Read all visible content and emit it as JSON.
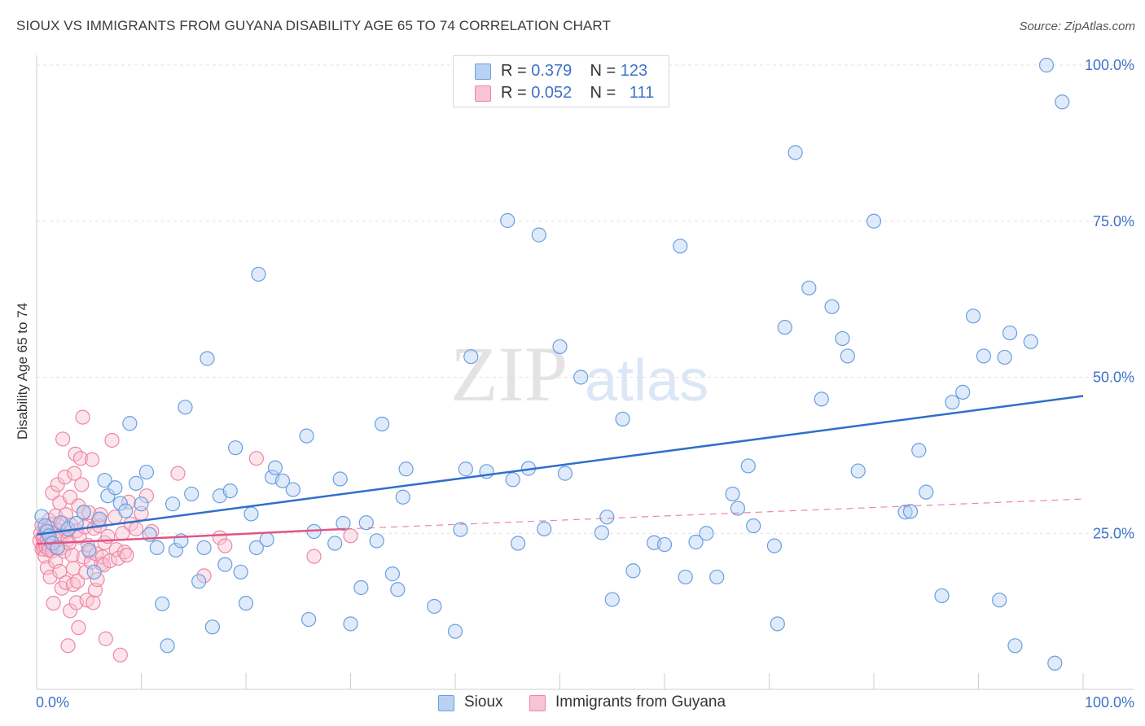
{
  "title": "SIOUX VS IMMIGRANTS FROM GUYANA DISABILITY AGE 65 TO 74 CORRELATION CHART",
  "source": "Source: ZipAtlas.com",
  "watermark": {
    "zip": "ZIP",
    "atlas": "atlas"
  },
  "legend": {
    "r_label": "R =",
    "n_label": "N =",
    "rows": [
      {
        "r": "0.379",
        "n": "123"
      },
      {
        "r": "0.052",
        "n": "111"
      }
    ]
  },
  "colors": {
    "sioux_fill": "#b9d2f3",
    "sioux_stroke": "#6a9ee0",
    "sioux_line": "#2f6fcb",
    "guyana_fill": "#f8c3d2",
    "guyana_stroke": "#ee86a6",
    "guyana_line": "#e05585",
    "axis_label": "#3f72c8"
  },
  "chart_data": {
    "type": "scatter",
    "xlabel": "",
    "ylabel": "Disability Age 65 to 74",
    "xlim": [
      0,
      100
    ],
    "ylim": [
      0,
      100
    ],
    "x_tick_labels": [
      "0.0%",
      "100.0%"
    ],
    "y_tick_labels": [
      "25.0%",
      "50.0%",
      "75.0%",
      "100.0%"
    ],
    "y_tick_values": [
      25,
      50,
      75,
      100
    ],
    "series": [
      {
        "name": "Sioux",
        "r": 0.379,
        "n": 123,
        "trend": {
          "x": [
            0,
            100
          ],
          "y": [
            24.8,
            47.0
          ]
        },
        "points": [
          [
            0.5,
            27.7
          ],
          [
            0.8,
            26.2
          ],
          [
            1.0,
            25.3
          ],
          [
            1.2,
            24.6
          ],
          [
            1.5,
            23.4
          ],
          [
            2.0,
            22.7
          ],
          [
            2.3,
            26.7
          ],
          [
            3.0,
            25.7
          ],
          [
            3.8,
            26.6
          ],
          [
            4.5,
            28.4
          ],
          [
            5.0,
            22.3
          ],
          [
            5.5,
            18.8
          ],
          [
            6.0,
            27.3
          ],
          [
            6.5,
            33.5
          ],
          [
            6.8,
            31.0
          ],
          [
            7.5,
            32.3
          ],
          [
            8.0,
            29.8
          ],
          [
            8.5,
            28.6
          ],
          [
            8.9,
            42.6
          ],
          [
            9.5,
            33.0
          ],
          [
            10.0,
            29.7
          ],
          [
            10.5,
            34.8
          ],
          [
            10.8,
            24.8
          ],
          [
            11.5,
            22.7
          ],
          [
            12.0,
            13.7
          ],
          [
            12.5,
            7.0
          ],
          [
            13.0,
            29.7
          ],
          [
            13.3,
            22.3
          ],
          [
            13.8,
            23.8
          ],
          [
            14.2,
            45.2
          ],
          [
            14.8,
            31.3
          ],
          [
            15.5,
            17.3
          ],
          [
            16.0,
            22.7
          ],
          [
            16.3,
            53.0
          ],
          [
            16.8,
            10.0
          ],
          [
            17.5,
            31.0
          ],
          [
            18.0,
            20.0
          ],
          [
            18.5,
            31.8
          ],
          [
            19.0,
            38.7
          ],
          [
            19.5,
            18.8
          ],
          [
            20.0,
            13.8
          ],
          [
            20.5,
            28.1
          ],
          [
            21.0,
            22.7
          ],
          [
            21.2,
            66.5
          ],
          [
            22.0,
            24.0
          ],
          [
            22.5,
            34.0
          ],
          [
            22.8,
            35.5
          ],
          [
            23.5,
            33.4
          ],
          [
            24.5,
            32.0
          ],
          [
            25.8,
            40.6
          ],
          [
            26.0,
            11.2
          ],
          [
            26.5,
            25.3
          ],
          [
            28.5,
            23.4
          ],
          [
            29.0,
            33.7
          ],
          [
            29.3,
            26.6
          ],
          [
            30.0,
            10.5
          ],
          [
            31.0,
            16.3
          ],
          [
            31.5,
            26.7
          ],
          [
            32.5,
            23.8
          ],
          [
            33.0,
            42.5
          ],
          [
            34.0,
            18.5
          ],
          [
            34.5,
            16.0
          ],
          [
            35.0,
            30.8
          ],
          [
            35.3,
            35.3
          ],
          [
            38.0,
            13.3
          ],
          [
            40.0,
            9.3
          ],
          [
            40.5,
            25.6
          ],
          [
            41.0,
            35.3
          ],
          [
            41.5,
            53.3
          ],
          [
            43.0,
            34.9
          ],
          [
            45.0,
            75.1
          ],
          [
            45.5,
            33.6
          ],
          [
            46.0,
            23.4
          ],
          [
            47.0,
            35.4
          ],
          [
            48.0,
            72.8
          ],
          [
            48.5,
            25.7
          ],
          [
            50.0,
            54.9
          ],
          [
            50.5,
            34.6
          ],
          [
            52.0,
            50.0
          ],
          [
            54.0,
            25.1
          ],
          [
            54.5,
            27.6
          ],
          [
            55.0,
            14.4
          ],
          [
            56.0,
            43.3
          ],
          [
            57.0,
            19.0
          ],
          [
            59.0,
            23.5
          ],
          [
            60.0,
            23.2
          ],
          [
            61.5,
            71.0
          ],
          [
            62.0,
            18.0
          ],
          [
            63.0,
            23.6
          ],
          [
            64.0,
            25.0
          ],
          [
            65.0,
            18.0
          ],
          [
            66.5,
            31.3
          ],
          [
            67.0,
            29.0
          ],
          [
            68.0,
            35.8
          ],
          [
            68.5,
            26.2
          ],
          [
            70.5,
            23.0
          ],
          [
            70.8,
            10.5
          ],
          [
            71.5,
            58.0
          ],
          [
            72.5,
            86.0
          ],
          [
            73.8,
            64.3
          ],
          [
            75.0,
            46.5
          ],
          [
            76.0,
            61.3
          ],
          [
            77.0,
            56.2
          ],
          [
            77.5,
            53.4
          ],
          [
            78.5,
            35.0
          ],
          [
            80.0,
            75.0
          ],
          [
            83.0,
            28.4
          ],
          [
            83.5,
            28.5
          ],
          [
            84.3,
            38.3
          ],
          [
            85.0,
            31.6
          ],
          [
            86.5,
            15.0
          ],
          [
            87.5,
            46.0
          ],
          [
            88.5,
            47.6
          ],
          [
            89.5,
            59.8
          ],
          [
            90.5,
            53.4
          ],
          [
            92.0,
            14.3
          ],
          [
            92.5,
            53.2
          ],
          [
            93.0,
            57.1
          ],
          [
            93.5,
            7.0
          ],
          [
            95.0,
            55.7
          ],
          [
            96.5,
            100.0
          ],
          [
            97.3,
            4.2
          ],
          [
            98.0,
            94.1
          ]
        ]
      },
      {
        "name": "Immigrants from Guyana",
        "r": 0.052,
        "n": 111,
        "trend": {
          "x": [
            0,
            29.5
          ],
          "y": [
            23.3,
            25.7
          ]
        },
        "trend_dashed": {
          "x": [
            29.5,
            100
          ],
          "y": [
            25.7,
            30.5
          ]
        },
        "points": [
          [
            0.3,
            23.8
          ],
          [
            0.4,
            25.0
          ],
          [
            0.5,
            22.5
          ],
          [
            0.5,
            26.3
          ],
          [
            0.6,
            24.2
          ],
          [
            0.6,
            23.0
          ],
          [
            0.7,
            22.4
          ],
          [
            0.7,
            24.6
          ],
          [
            0.8,
            21.3
          ],
          [
            0.8,
            23.5
          ],
          [
            0.9,
            25.4
          ],
          [
            0.9,
            22.8
          ],
          [
            1.0,
            24.1
          ],
          [
            1.0,
            19.5
          ],
          [
            1.1,
            26.1
          ],
          [
            1.1,
            23.2
          ],
          [
            1.2,
            22.3
          ],
          [
            1.2,
            27.1
          ],
          [
            1.3,
            24.6
          ],
          [
            1.3,
            18.0
          ],
          [
            1.4,
            25.0
          ],
          [
            1.4,
            23.6
          ],
          [
            1.5,
            22.2
          ],
          [
            1.5,
            31.5
          ],
          [
            1.6,
            13.8
          ],
          [
            1.6,
            26.5
          ],
          [
            1.7,
            24.0
          ],
          [
            1.8,
            20.5
          ],
          [
            1.8,
            27.8
          ],
          [
            1.9,
            22.7
          ],
          [
            2.0,
            23.9
          ],
          [
            2.0,
            32.8
          ],
          [
            2.1,
            25.4
          ],
          [
            2.2,
            18.9
          ],
          [
            2.2,
            29.9
          ],
          [
            2.3,
            22.6
          ],
          [
            2.4,
            16.2
          ],
          [
            2.4,
            24.6
          ],
          [
            2.5,
            26.6
          ],
          [
            2.5,
            40.1
          ],
          [
            2.6,
            22.1
          ],
          [
            2.7,
            34.0
          ],
          [
            2.8,
            28.0
          ],
          [
            2.8,
            17.1
          ],
          [
            2.9,
            25.3
          ],
          [
            3.0,
            7.0
          ],
          [
            3.0,
            24.0
          ],
          [
            3.1,
            23.4
          ],
          [
            3.2,
            12.6
          ],
          [
            3.2,
            30.8
          ],
          [
            3.3,
            26.3
          ],
          [
            3.4,
            21.5
          ],
          [
            3.5,
            19.4
          ],
          [
            3.5,
            16.8
          ],
          [
            3.6,
            34.6
          ],
          [
            3.7,
            37.7
          ],
          [
            3.8,
            25.4
          ],
          [
            3.8,
            13.9
          ],
          [
            3.9,
            17.3
          ],
          [
            4.0,
            9.9
          ],
          [
            4.0,
            29.4
          ],
          [
            4.1,
            24.4
          ],
          [
            4.2,
            37.0
          ],
          [
            4.3,
            32.8
          ],
          [
            4.4,
            43.6
          ],
          [
            4.5,
            28.3
          ],
          [
            4.5,
            21.2
          ],
          [
            4.6,
            26.0
          ],
          [
            4.7,
            18.8
          ],
          [
            4.8,
            14.3
          ],
          [
            4.9,
            23.1
          ],
          [
            5.0,
            28.3
          ],
          [
            5.1,
            22.0
          ],
          [
            5.2,
            20.4
          ],
          [
            5.3,
            36.8
          ],
          [
            5.4,
            13.9
          ],
          [
            5.5,
            25.8
          ],
          [
            5.6,
            15.9
          ],
          [
            5.7,
            21.7
          ],
          [
            5.8,
            17.6
          ],
          [
            5.9,
            27.0
          ],
          [
            6.0,
            26.2
          ],
          [
            6.1,
            28.0
          ],
          [
            6.2,
            20.1
          ],
          [
            6.3,
            21.2
          ],
          [
            6.4,
            19.9
          ],
          [
            6.5,
            23.5
          ],
          [
            6.6,
            8.1
          ],
          [
            6.8,
            24.5
          ],
          [
            7.0,
            20.6
          ],
          [
            7.2,
            39.9
          ],
          [
            7.5,
            27.6
          ],
          [
            7.6,
            22.4
          ],
          [
            7.8,
            21.0
          ],
          [
            8.0,
            5.5
          ],
          [
            8.2,
            25.0
          ],
          [
            8.4,
            22.0
          ],
          [
            8.6,
            21.5
          ],
          [
            8.8,
            30.0
          ],
          [
            9.0,
            26.5
          ],
          [
            9.5,
            25.7
          ],
          [
            10.0,
            28.2
          ],
          [
            10.5,
            31.0
          ],
          [
            11.0,
            25.3
          ],
          [
            13.5,
            34.6
          ],
          [
            16.0,
            18.2
          ],
          [
            17.5,
            24.3
          ],
          [
            18.0,
            23.0
          ],
          [
            21.0,
            37.0
          ],
          [
            26.5,
            21.3
          ],
          [
            30.0,
            24.6
          ]
        ]
      }
    ],
    "legend_position": "top-center"
  },
  "bottom_legend": [
    "Sioux",
    "Immigrants from Guyana"
  ]
}
